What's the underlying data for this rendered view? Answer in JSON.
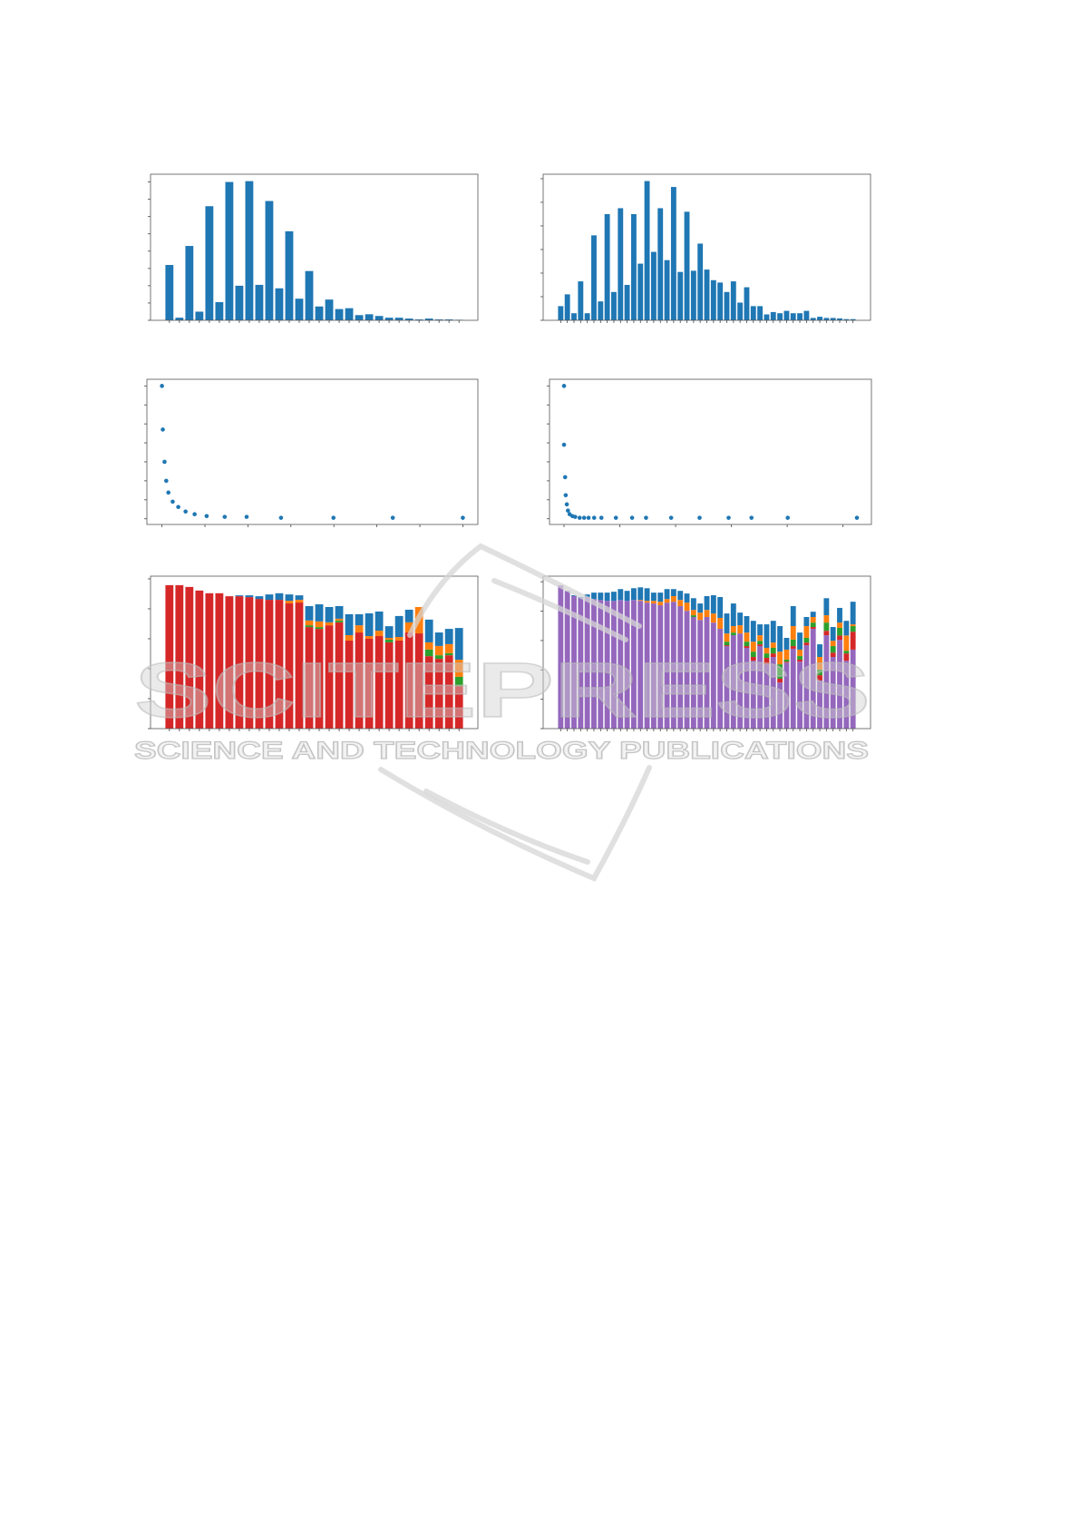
{
  "watermark": {
    "name": "SCITEPRESS",
    "tagline": "SCIENCE AND TECHNOLOGY PUBLICATIONS",
    "color": "#c8c8c8"
  },
  "chart_data": [
    {
      "type": "bar",
      "color": "#1f77b4",
      "values": [
        3.2,
        0.15,
        4.3,
        0.5,
        6.6,
        1.05,
        8.0,
        2.0,
        8.05,
        2.05,
        6.9,
        1.85,
        5.15,
        1.25,
        2.85,
        0.8,
        1.2,
        0.65,
        0.7,
        0.3,
        0.35,
        0.25,
        0.15,
        0.15,
        0.1,
        0.05,
        0.1,
        0.05,
        0.05,
        0.03
      ],
      "ylim": [
        0,
        8.45
      ],
      "grid": false
    },
    {
      "type": "bar",
      "color": "#1f77b4",
      "values": [
        0.6,
        1.1,
        0.3,
        1.65,
        0.3,
        3.6,
        0.8,
        4.5,
        1.2,
        4.75,
        1.5,
        4.5,
        2.4,
        5.9,
        2.9,
        4.75,
        2.55,
        5.65,
        2.05,
        4.6,
        2.1,
        3.25,
        2.15,
        1.7,
        1.6,
        1.2,
        1.65,
        0.75,
        1.4,
        0.6,
        0.6,
        0.25,
        0.35,
        0.3,
        0.4,
        0.3,
        0.3,
        0.4,
        0.1,
        0.15,
        0.1,
        0.1,
        0.08,
        0.05,
        0.05
      ],
      "ylim": [
        0,
        6.19
      ],
      "grid": false
    },
    {
      "type": "scatter",
      "color": "#1f77b4",
      "x": [
        0,
        0.02,
        0.06,
        0.1,
        0.15,
        0.25,
        0.38,
        0.55,
        0.76,
        1.04,
        1.46,
        1.97,
        2.77,
        3.99,
        5.37,
        7.0
      ],
      "y": [
        7.0,
        4.7,
        3.0,
        2.0,
        1.38,
        0.9,
        0.62,
        0.38,
        0.24,
        0.14,
        0.1,
        0.1,
        0.05,
        0.05,
        0.05,
        0.05
      ],
      "xlim": [
        -0.35,
        7.35
      ],
      "ylim": [
        -0.3,
        7.35
      ],
      "grid": false
    },
    {
      "type": "scatter",
      "color": "#1f77b4",
      "x": [
        0,
        0,
        0.02,
        0.03,
        0.05,
        0.07,
        0.1,
        0.15,
        0.2,
        0.28,
        0.36,
        0.44,
        0.54,
        0.67,
        0.93,
        1.22,
        1.47,
        1.92,
        2.43,
        2.95,
        3.36,
        4.01,
        5.25
      ],
      "y": [
        7.0,
        3.9,
        2.19,
        1.24,
        0.76,
        0.43,
        0.24,
        0.14,
        0.1,
        0.05,
        0.05,
        0.05,
        0.05,
        0.05,
        0.05,
        0.05,
        0.05,
        0.05,
        0.05,
        0.05,
        0.05,
        0.05,
        0.05
      ],
      "xlim": [
        -0.26,
        5.51
      ],
      "ylim": [
        -0.3,
        7.35
      ],
      "grid": false
    },
    {
      "type": "bar",
      "stacked": true,
      "series": [
        {
          "color": "#d62728",
          "values": [
            4.79,
            4.79,
            4.73,
            4.61,
            4.52,
            4.52,
            4.42,
            4.42,
            4.39,
            4.33,
            4.3,
            4.3,
            4.18,
            4.21,
            3.39,
            3.33,
            3.45,
            3.55,
            2.94,
            3.21,
            3.0,
            3.09,
            2.88,
            2.94,
            3.21,
            3.18,
            2.42,
            2.33,
            2.45,
            1.42
          ]
        },
        {
          "color": "#2ca02c",
          "values": [
            0,
            0,
            0,
            0,
            0,
            0,
            0,
            0,
            0,
            0,
            0,
            0,
            0,
            0,
            0.06,
            0.06,
            0,
            0.06,
            0,
            0,
            0,
            0,
            0.09,
            0,
            0,
            0,
            0.22,
            0.12,
            0.07,
            0.31
          ]
        },
        {
          "color": "#ff7f0e",
          "values": [
            0,
            0,
            0,
            0,
            0,
            0,
            0,
            0,
            0,
            0,
            0,
            0,
            0.09,
            0.09,
            0.16,
            0.19,
            0.1,
            0.06,
            0.18,
            0.24,
            0.09,
            0.18,
            0.06,
            0.12,
            0.34,
            0.88,
            0.24,
            0.31,
            0.3,
            0.57
          ]
        },
        {
          "color": "#1f77b4",
          "values": [
            0,
            0,
            0,
            0,
            0,
            0,
            0,
            0.03,
            0.06,
            0.09,
            0.18,
            0.22,
            0.21,
            0.15,
            0.48,
            0.57,
            0.51,
            0.42,
            0.7,
            0.37,
            0.76,
            0.64,
            0.39,
            0.7,
            0.42,
            0,
            0.76,
            0.45,
            0.51,
            1.06
          ]
        }
      ],
      "ylim": [
        0,
        5.09
      ],
      "grid": false
    },
    {
      "type": "bar",
      "stacked": true,
      "series": [
        {
          "color": "#9467bd",
          "values": [
            4.88,
            4.69,
            4.51,
            4.44,
            4.48,
            4.41,
            4.38,
            4.35,
            4.35,
            4.38,
            4.35,
            4.38,
            4.35,
            4.29,
            4.26,
            4.2,
            4.29,
            4.32,
            4.17,
            4.01,
            3.8,
            3.7,
            3.8,
            3.61,
            3.4,
            2.81,
            3.18,
            3.24,
            2.75,
            2.31,
            2.81,
            2.19,
            2.44,
            1.57,
            2.25,
            2.72,
            2.28,
            2.84,
            3.4,
            1.64,
            3.18,
            2.44,
            3.02,
            2.31,
            2.69
          ]
        },
        {
          "color": "#d62728",
          "values": [
            0,
            0,
            0,
            0,
            0,
            0,
            0,
            0,
            0,
            0,
            0,
            0,
            0,
            0,
            0,
            0,
            0,
            0,
            0,
            0,
            0,
            0,
            0,
            0,
            0,
            0.03,
            0,
            0,
            0.06,
            0.13,
            0.06,
            0.22,
            0.12,
            0.13,
            0.03,
            0.09,
            0.07,
            0.09,
            0.06,
            0.18,
            0.15,
            0.15,
            0.15,
            0.25,
            0.61
          ]
        },
        {
          "color": "#2ca02c",
          "values": [
            0,
            0,
            0,
            0,
            0,
            0,
            0,
            0,
            0,
            0,
            0,
            0,
            0,
            0,
            0,
            0,
            0,
            0,
            0,
            0,
            0.06,
            0,
            0,
            0,
            0,
            0.12,
            0.09,
            0,
            0.15,
            0.18,
            0.12,
            0.15,
            0.19,
            0.49,
            0.07,
            0.22,
            0.12,
            0.16,
            0.15,
            0.19,
            0.28,
            0.22,
            0.26,
            0.09,
            0.19
          ]
        },
        {
          "color": "#ff7f0e",
          "values": [
            0,
            0,
            0,
            0,
            0,
            0,
            0,
            0,
            0,
            0,
            0,
            0,
            0.03,
            0.06,
            0.09,
            0.12,
            0.12,
            0.19,
            0.21,
            0.28,
            0.18,
            0.25,
            0.24,
            0.31,
            0.37,
            0.28,
            0.22,
            0.28,
            0.31,
            0.34,
            0.19,
            0.19,
            0.18,
            0.43,
            0.34,
            0.46,
            0.22,
            0.4,
            0.19,
            0.43,
            0.25,
            0.18,
            0.18,
            0.52,
            0.06
          ]
        },
        {
          "color": "#1f77b4",
          "values": [
            0,
            0,
            0.03,
            0.04,
            0.09,
            0.22,
            0.25,
            0.28,
            0.31,
            0.37,
            0.34,
            0.4,
            0.43,
            0.43,
            0.28,
            0.31,
            0.34,
            0.24,
            0.31,
            0.31,
            0.4,
            0.31,
            0.47,
            0.62,
            0.71,
            0.68,
            0.77,
            0.43,
            0.56,
            0.71,
            0.37,
            0.8,
            0.74,
            0.87,
            0.4,
            0.68,
            0.58,
            0.31,
            0.18,
            0.43,
            0.58,
            0.47,
            0.5,
            0.5,
            0.77
          ]
        }
      ],
      "ylim": [
        0,
        5.19
      ],
      "grid": false
    }
  ]
}
